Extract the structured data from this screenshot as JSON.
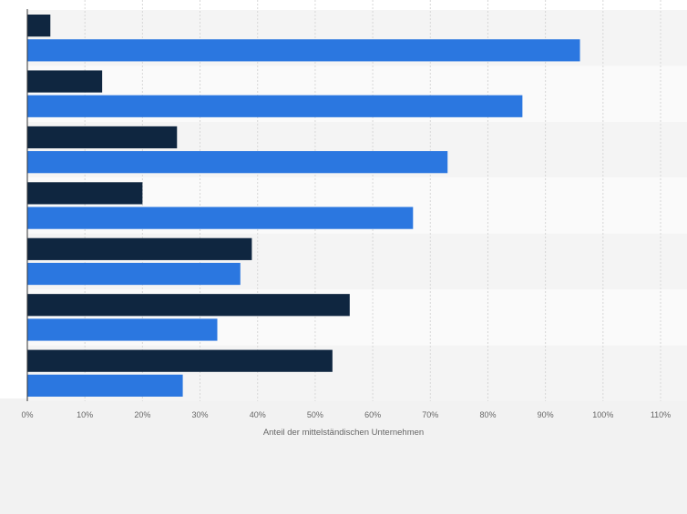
{
  "chart_data": {
    "type": "bar",
    "orientation": "horizontal",
    "categories": [
      "",
      "",
      "",
      "",
      "",
      "",
      ""
    ],
    "series": [
      {
        "color": "#0f2640",
        "values": [
          4,
          13,
          26,
          20,
          39,
          56,
          53
        ]
      },
      {
        "color": "#2b77e0",
        "values": [
          96,
          86,
          73,
          67,
          37,
          33,
          27
        ]
      }
    ],
    "xlabel": "Anteil der mittelständischen Unternehmen",
    "xlim": [
      0,
      110
    ],
    "xticks": [
      0,
      10,
      20,
      30,
      40,
      50,
      60,
      70,
      80,
      90,
      100,
      110
    ],
    "xtick_labels": [
      "0%",
      "10%",
      "20%",
      "30%",
      "40%",
      "50%",
      "60%",
      "70%",
      "80%",
      "90%",
      "100%",
      "110%"
    ],
    "grid": true,
    "legend": "none"
  }
}
